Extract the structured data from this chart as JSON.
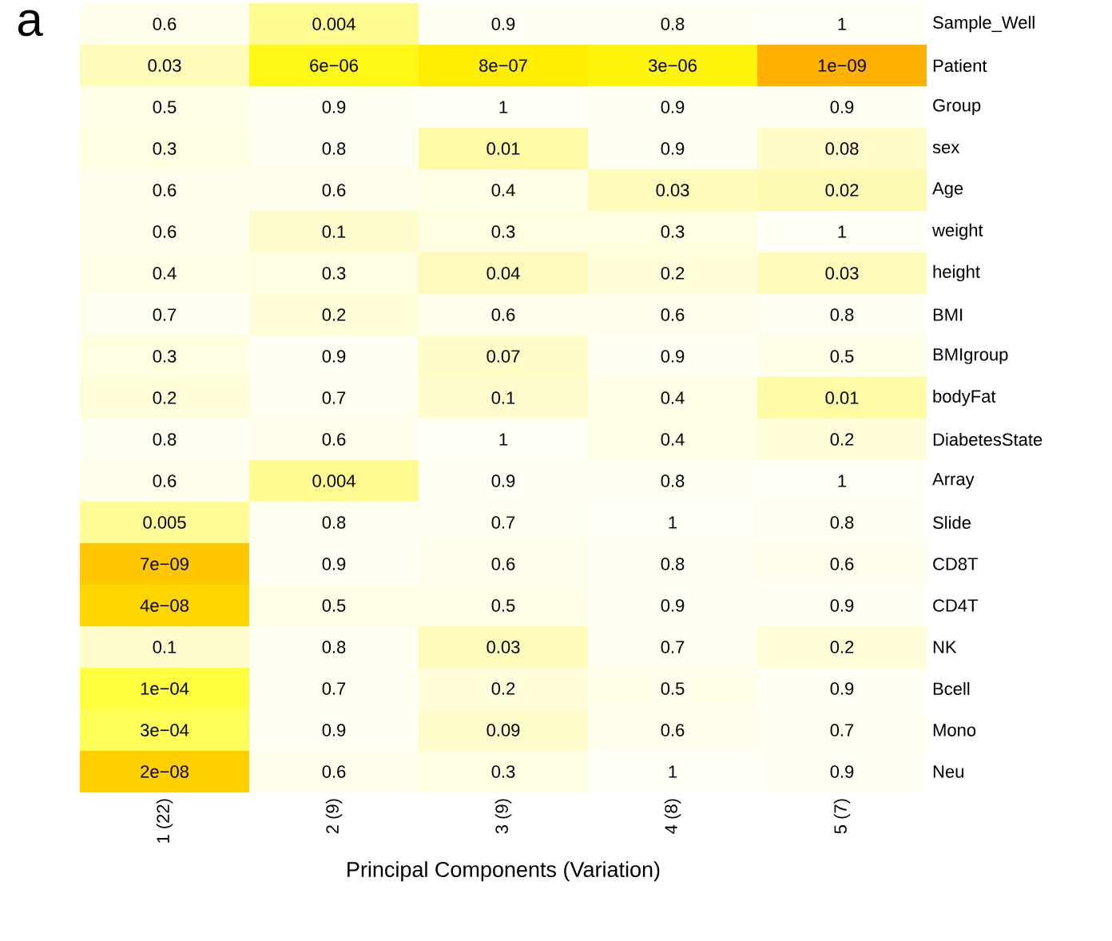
{
  "chart_data": {
    "type": "heatmap",
    "annotations": [
      "a"
    ],
    "xlabel": "Principal Components (Variation)",
    "categories": [
      "1 (22)",
      "2 (9)",
      "3 (9)",
      "4 (8)",
      "5 (7)"
    ],
    "y_categories": [
      "Sample_Well",
      "Patient",
      "Group",
      "sex",
      "Age",
      "weight",
      "height",
      "BMI",
      "BMIgroup",
      "bodyFat",
      "DiabetesState",
      "Array",
      "Slide",
      "CD8T",
      "CD4T",
      "NK",
      "Bcell",
      "Mono",
      "Neu"
    ],
    "cells": [
      [
        0.6,
        0.004,
        0.9,
        0.8,
        1
      ],
      [
        0.03,
        6e-06,
        8e-07,
        3e-06,
        1e-09
      ],
      [
        0.5,
        0.9,
        1,
        0.9,
        0.9
      ],
      [
        0.3,
        0.8,
        0.01,
        0.9,
        0.08
      ],
      [
        0.6,
        0.6,
        0.4,
        0.03,
        0.02
      ],
      [
        0.6,
        0.1,
        0.3,
        0.3,
        1
      ],
      [
        0.4,
        0.3,
        0.04,
        0.2,
        0.03
      ],
      [
        0.7,
        0.2,
        0.6,
        0.6,
        0.8
      ],
      [
        0.3,
        0.9,
        0.07,
        0.9,
        0.5
      ],
      [
        0.2,
        0.7,
        0.1,
        0.4,
        0.01
      ],
      [
        0.8,
        0.6,
        1,
        0.4,
        0.2
      ],
      [
        0.6,
        0.004,
        0.9,
        0.8,
        1
      ],
      [
        0.005,
        0.8,
        0.7,
        1,
        0.8
      ],
      [
        7e-09,
        0.9,
        0.6,
        0.8,
        0.6
      ],
      [
        4e-08,
        0.5,
        0.5,
        0.9,
        0.9
      ],
      [
        0.1,
        0.8,
        0.03,
        0.7,
        0.2
      ],
      [
        0.0001,
        0.7,
        0.2,
        0.5,
        0.9
      ],
      [
        0.0003,
        0.9,
        0.09,
        0.6,
        0.7
      ],
      [
        2e-08,
        0.6,
        0.3,
        1,
        0.9
      ]
    ],
    "cell_labels": [
      [
        "0.6",
        "0.004",
        "0.9",
        "0.8",
        "1"
      ],
      [
        "0.03",
        "6e−06",
        "8e−07",
        "3e−06",
        "1e−09"
      ],
      [
        "0.5",
        "0.9",
        "1",
        "0.9",
        "0.9"
      ],
      [
        "0.3",
        "0.8",
        "0.01",
        "0.9",
        "0.08"
      ],
      [
        "0.6",
        "0.6",
        "0.4",
        "0.03",
        "0.02"
      ],
      [
        "0.6",
        "0.1",
        "0.3",
        "0.3",
        "1"
      ],
      [
        "0.4",
        "0.3",
        "0.04",
        "0.2",
        "0.03"
      ],
      [
        "0.7",
        "0.2",
        "0.6",
        "0.6",
        "0.8"
      ],
      [
        "0.3",
        "0.9",
        "0.07",
        "0.9",
        "0.5"
      ],
      [
        "0.2",
        "0.7",
        "0.1",
        "0.4",
        "0.01"
      ],
      [
        "0.8",
        "0.6",
        "1",
        "0.4",
        "0.2"
      ],
      [
        "0.6",
        "0.004",
        "0.9",
        "0.8",
        "1"
      ],
      [
        "0.005",
        "0.8",
        "0.7",
        "1",
        "0.8"
      ],
      [
        "7e−09",
        "0.9",
        "0.6",
        "0.8",
        "0.6"
      ],
      [
        "4e−08",
        "0.5",
        "0.5",
        "0.9",
        "0.9"
      ],
      [
        "0.1",
        "0.8",
        "0.03",
        "0.7",
        "0.2"
      ],
      [
        "1e−04",
        "0.7",
        "0.2",
        "0.5",
        "0.9"
      ],
      [
        "3e−04",
        "0.9",
        "0.09",
        "0.6",
        "0.7"
      ],
      [
        "2e−08",
        "0.6",
        "0.3",
        "1",
        "0.9"
      ]
    ]
  }
}
